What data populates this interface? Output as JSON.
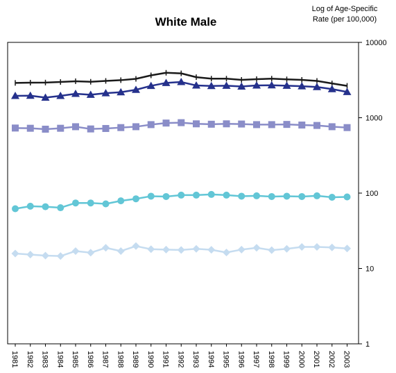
{
  "chart_data": {
    "type": "line",
    "title": "White Male",
    "ylabel_lines": [
      "Log of Age-Specific",
      "Rate (per 100,000)"
    ],
    "yscale": "log",
    "ylim": [
      1,
      10000
    ],
    "y_tick_labels": [
      "10000",
      "1000",
      "100",
      "10",
      "1"
    ],
    "y_tick_values": [
      10000,
      1000,
      100,
      10,
      1
    ],
    "grid": false,
    "legend": "none",
    "x": [
      "1981",
      "1982",
      "1983",
      "1984",
      "1985",
      "1986",
      "1987",
      "1988",
      "1989",
      "1990",
      "1991",
      "1992",
      "1993",
      "1994",
      "1995",
      "1996",
      "1997",
      "1998",
      "1999",
      "2000",
      "2001",
      "2002",
      "2003"
    ],
    "series": [
      {
        "color": "#1a1a1a",
        "marker": "plus",
        "values": [
          2900,
          2920,
          2930,
          2980,
          3050,
          3000,
          3080,
          3150,
          3280,
          3650,
          3950,
          3880,
          3450,
          3300,
          3300,
          3180,
          3250,
          3300,
          3230,
          3180,
          3080,
          2850,
          2650
        ]
      },
      {
        "color": "#25318c",
        "marker": "triangle",
        "values": [
          1950,
          1960,
          1850,
          1950,
          2080,
          2020,
          2120,
          2180,
          2350,
          2650,
          2900,
          2980,
          2680,
          2640,
          2660,
          2600,
          2680,
          2700,
          2660,
          2620,
          2560,
          2400,
          2200
        ]
      },
      {
        "color": "#8a8dc8",
        "marker": "square",
        "values": [
          730,
          725,
          705,
          725,
          760,
          710,
          720,
          740,
          760,
          810,
          850,
          860,
          830,
          820,
          830,
          825,
          810,
          810,
          815,
          800,
          790,
          760,
          740
        ]
      },
      {
        "color": "#62c6d6",
        "marker": "circle",
        "values": [
          62,
          67,
          66,
          64,
          74,
          74,
          72,
          79,
          84,
          91,
          90,
          94,
          94,
          96,
          94,
          91,
          92,
          90,
          91,
          90,
          92,
          88,
          89
        ]
      },
      {
        "color": "#c5dcf0",
        "marker": "diamond",
        "values": [
          15.8,
          15.3,
          14.8,
          14.6,
          17.0,
          16.2,
          18.8,
          17.0,
          19.8,
          18.0,
          17.8,
          17.6,
          18.2,
          17.7,
          16.3,
          17.8,
          18.8,
          17.5,
          18.2,
          19.3,
          19.3,
          19.0,
          18.4
        ]
      }
    ]
  }
}
